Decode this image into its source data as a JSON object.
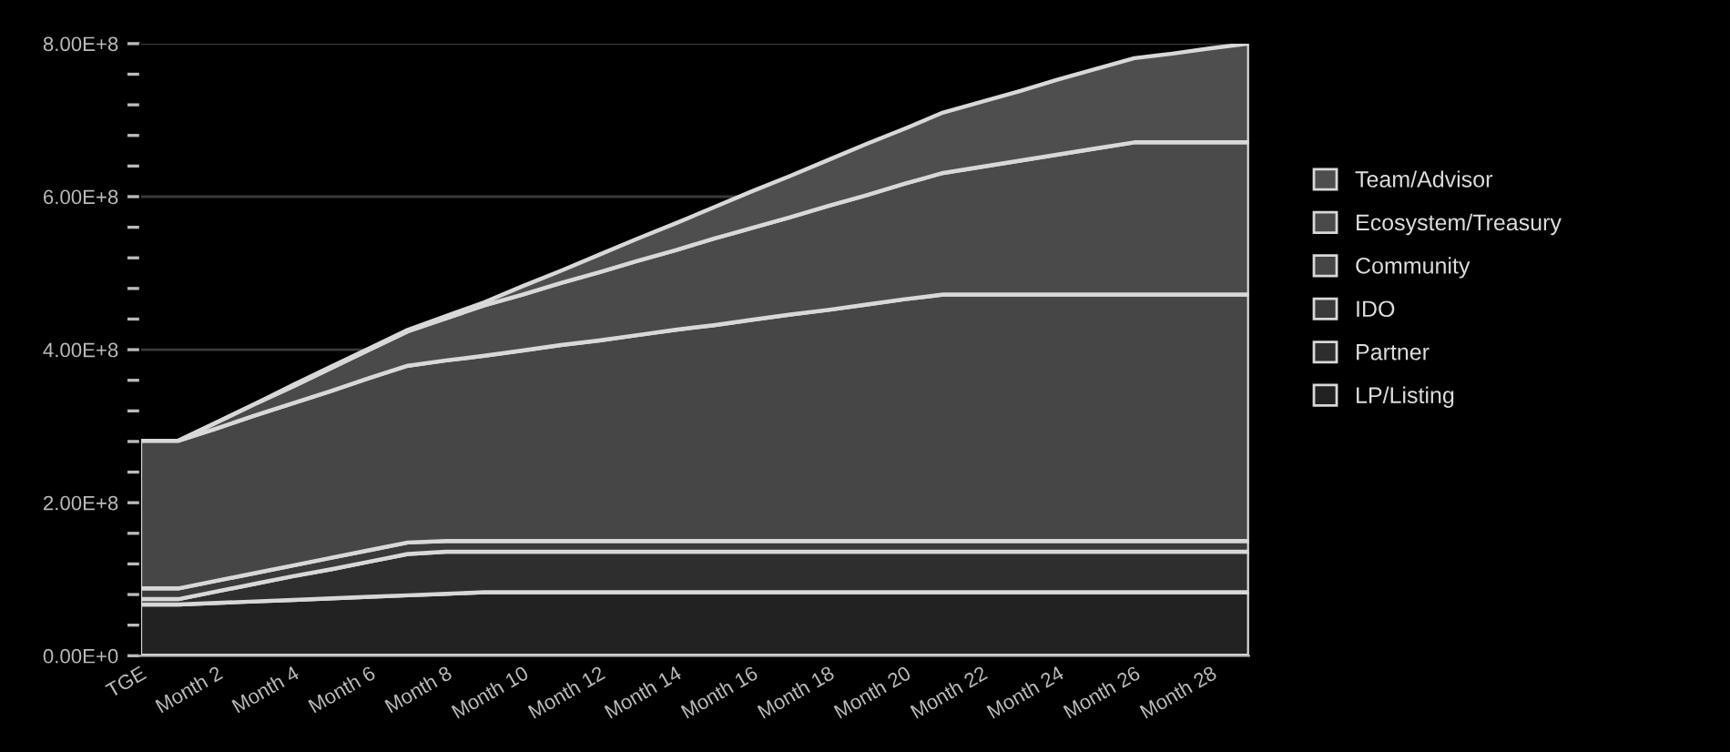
{
  "chart_data": {
    "type": "area",
    "stacked": true,
    "categories": [
      "TGE",
      null,
      "Month 2",
      null,
      "Month 4",
      null,
      "Month 6",
      null,
      "Month 8",
      null,
      "Month 10",
      null,
      "Month 12",
      null,
      "Month 14",
      null,
      "Month 16",
      null,
      "Month 18",
      null,
      "Month 20",
      null,
      "Month 22",
      null,
      "Month 24",
      null,
      "Month 26",
      null,
      "Month 28",
      null
    ],
    "series": [
      {
        "name": "LP/Listing",
        "color": "#222222",
        "values": [
          67000000,
          67000000,
          69000000,
          71000000,
          73000000,
          75000000,
          77000000,
          79000000,
          81000000,
          83000000,
          83000000,
          83000000,
          83000000,
          83000000,
          83000000,
          83000000,
          83000000,
          83000000,
          83000000,
          83000000,
          83000000,
          83000000,
          83000000,
          83000000,
          83000000,
          83000000,
          83000000,
          83000000,
          83000000,
          83000000
        ]
      },
      {
        "name": "Partner",
        "color": "#2e2e2e",
        "values": [
          7000000,
          7000000,
          15000000,
          23000000,
          31000000,
          38000000,
          46000000,
          54000000,
          55000000,
          53000000,
          53000000,
          53000000,
          53000000,
          53000000,
          53000000,
          53000000,
          53000000,
          53000000,
          53000000,
          53000000,
          53000000,
          53000000,
          53000000,
          53000000,
          53000000,
          53000000,
          53000000,
          53000000,
          53000000,
          53000000
        ]
      },
      {
        "name": "IDO",
        "color": "#3a3a3a",
        "values": [
          14000000,
          14000000,
          14000000,
          14000000,
          14000000,
          15000000,
          15000000,
          15000000,
          14000000,
          14000000,
          14000000,
          14000000,
          14000000,
          14000000,
          14000000,
          14000000,
          14000000,
          14000000,
          14000000,
          14000000,
          14000000,
          14000000,
          14000000,
          14000000,
          14000000,
          14000000,
          14000000,
          14000000,
          14000000,
          14000000
        ]
      },
      {
        "name": "Community",
        "color": "#464646",
        "values": [
          193000000,
          193000000,
          199000000,
          206000000,
          212000000,
          218000000,
          225000000,
          231000000,
          236000000,
          242000000,
          249000000,
          256000000,
          262000000,
          269000000,
          276000000,
          282000000,
          289000000,
          296000000,
          302000000,
          309000000,
          316000000,
          322000000,
          322000000,
          322000000,
          322000000,
          322000000,
          322000000,
          322000000,
          322000000,
          322000000
        ]
      },
      {
        "name": "Ecosystem/Treasury",
        "color": "#4a4a4a",
        "values": [
          0,
          0,
          8000000,
          15000000,
          22000000,
          30000000,
          37000000,
          45000000,
          55000000,
          66000000,
          73000000,
          81000000,
          89000000,
          97000000,
          104000000,
          113000000,
          120000000,
          127000000,
          136000000,
          143000000,
          151000000,
          159000000,
          167000000,
          175000000,
          183000000,
          191000000,
          199000000,
          199000000,
          199000000,
          199000000
        ]
      },
      {
        "name": "Team/Advisor",
        "color": "#4e4e4e",
        "values": [
          0,
          0,
          0,
          0,
          2000000,
          2000000,
          2000000,
          2000000,
          3000000,
          4000000,
          11000000,
          16000000,
          23000000,
          29000000,
          35000000,
          41000000,
          48000000,
          54000000,
          60000000,
          67000000,
          72000000,
          79000000,
          85000000,
          91000000,
          98000000,
          104000000,
          110000000,
          116000000,
          123000000,
          129000000
        ]
      }
    ],
    "ylim": [
      0,
      800000000
    ],
    "yticks": [
      {
        "value": 0,
        "label": "0.00E+0"
      },
      {
        "value": 40000000,
        "label": null
      },
      {
        "value": 80000000,
        "label": null
      },
      {
        "value": 120000000,
        "label": null
      },
      {
        "value": 160000000,
        "label": null
      },
      {
        "value": 200000000,
        "label": "2.00E+8"
      },
      {
        "value": 240000000,
        "label": null
      },
      {
        "value": 280000000,
        "label": null
      },
      {
        "value": 320000000,
        "label": null
      },
      {
        "value": 360000000,
        "label": null
      },
      {
        "value": 400000000,
        "label": "4.00E+8"
      },
      {
        "value": 440000000,
        "label": null
      },
      {
        "value": 480000000,
        "label": null
      },
      {
        "value": 520000000,
        "label": null
      },
      {
        "value": 560000000,
        "label": null
      },
      {
        "value": 600000000,
        "label": "6.00E+8"
      },
      {
        "value": 640000000,
        "label": null
      },
      {
        "value": 680000000,
        "label": null
      },
      {
        "value": 720000000,
        "label": null
      },
      {
        "value": 760000000,
        "label": null
      },
      {
        "value": 800000000,
        "label": "8.00E+8"
      }
    ],
    "grid": "y",
    "legend": "right"
  }
}
